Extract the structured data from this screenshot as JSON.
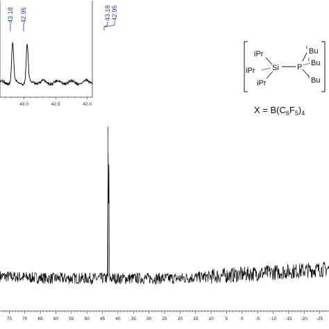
{
  "chart_data": [
    {
      "type": "line",
      "title": "",
      "xlabel": "",
      "ylabel": "",
      "x_reversed": true,
      "xlim": [
        78,
        -28
      ],
      "ticks": [
        "75",
        "70",
        "65",
        "60",
        "55",
        "50",
        "45",
        "40",
        "35",
        "30",
        "25",
        "20",
        "15",
        "10",
        "5",
        "0",
        "-5",
        "-10",
        "-15",
        "-20",
        "-25"
      ],
      "ylim": [
        0,
        1
      ],
      "grid": false,
      "baseline": 0.08,
      "noise_amplitude": 0.035,
      "peaks": [
        {
          "x": 43.18,
          "height": 1.0
        },
        {
          "x": 42.95,
          "height": 0.95
        }
      ]
    },
    {
      "type": "line",
      "title": "",
      "xlabel": "",
      "ylabel": "",
      "x_reversed": true,
      "xlim": [
        43.38,
        41.92
      ],
      "ticks": [
        "43.0",
        "42.5",
        "42.0"
      ],
      "ylim": [
        0,
        1
      ],
      "grid": false,
      "baseline": 0.22,
      "peaks": [
        {
          "x": 43.18,
          "height": 0.65
        },
        {
          "x": 42.95,
          "height": 0.62
        }
      ]
    }
  ],
  "peak_labels": [
    "43.18",
    "42.95"
  ],
  "structure": {
    "si": "Si",
    "p": "P",
    "ipr1": "iPr",
    "ipr2": "iPr",
    "ipr3": "iPr",
    "tbu1_sup": "t",
    "tbu1": "Bu",
    "tbu2_sup": "t",
    "tbu2": "Bu",
    "tbu3_sup": "t",
    "tbu3": "Bu"
  },
  "counterion": {
    "prefix": "X = B(C",
    "sub1": "6",
    "mid": "F",
    "sub2": "5",
    "close": ")",
    "sub3": "4"
  },
  "colors": {
    "trace": "#000000",
    "peak_label": "#2a3b8f",
    "axis": "#333333"
  }
}
